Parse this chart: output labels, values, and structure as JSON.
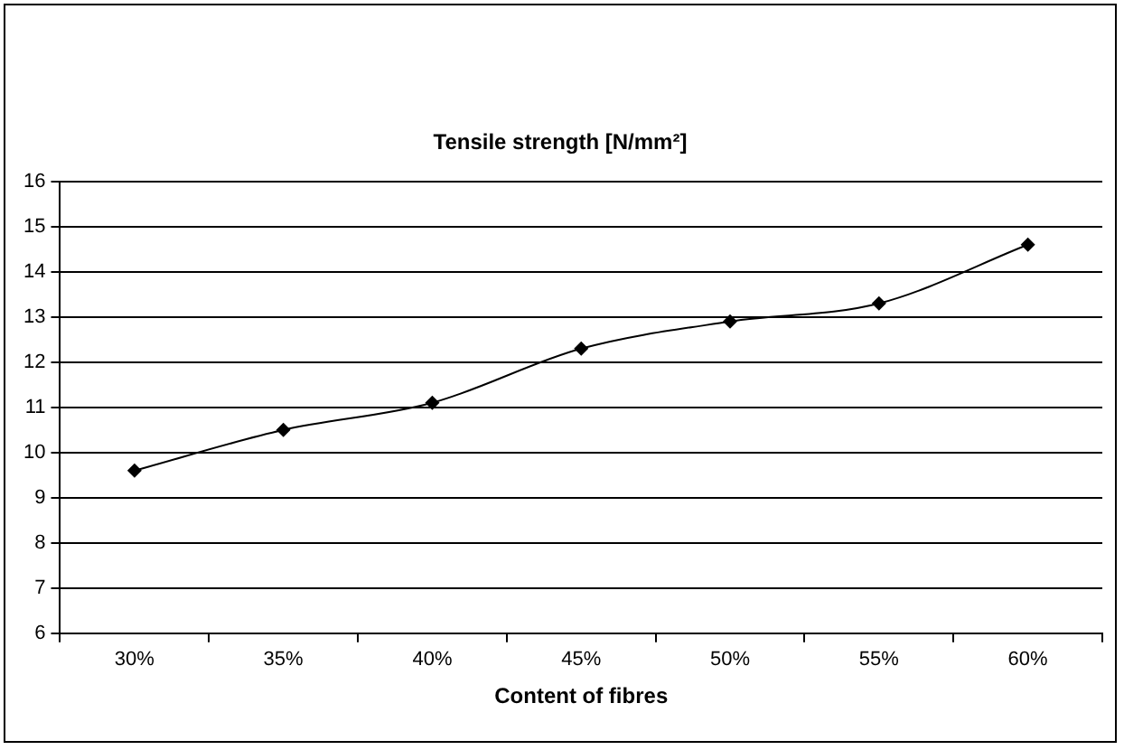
{
  "chart_data": {
    "type": "line",
    "title": "Tensile strength [N/mm²]",
    "xlabel": "Content of fibres",
    "categories": [
      "30%",
      "35%",
      "40%",
      "45%",
      "50%",
      "55%",
      "60%"
    ],
    "series": [
      {
        "color": "#000000",
        "values": [
          9.6,
          10.5,
          11.1,
          12.3,
          12.9,
          13.3,
          14.6
        ]
      }
    ],
    "ylim": [
      6,
      16
    ],
    "yticks": [
      6,
      7,
      8,
      9,
      10,
      11,
      12,
      13,
      14,
      15,
      16
    ],
    "grid": "y",
    "marker": "diamond",
    "line_style": "solid",
    "legend": false
  }
}
